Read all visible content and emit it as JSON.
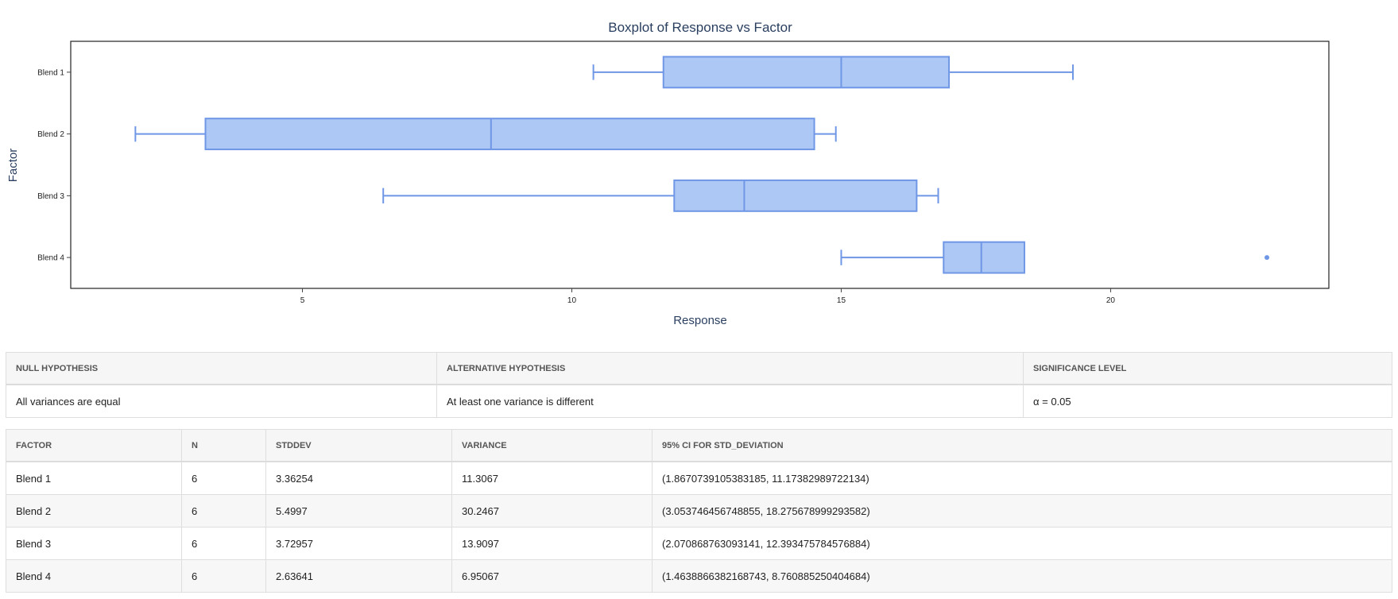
{
  "chart_data": {
    "type": "box",
    "orientation": "horizontal",
    "title": "Boxplot of Response vs Factor",
    "xlabel": "Response",
    "ylabel": "Factor",
    "xlim": [
      0.7,
      24.05
    ],
    "x_ticks": [
      5,
      10,
      15,
      20
    ],
    "categories": [
      "Blend 1",
      "Blend 2",
      "Blend 3",
      "Blend 4"
    ],
    "boxes": [
      {
        "category": "Blend 1",
        "min": 10.4,
        "q1": 11.7,
        "median": 15.0,
        "q3": 17.0,
        "max": 19.3,
        "outliers": []
      },
      {
        "category": "Blend 2",
        "min": 1.9,
        "q1": 3.2,
        "median": 8.5,
        "q3": 14.5,
        "max": 14.9,
        "outliers": []
      },
      {
        "category": "Blend 3",
        "min": 6.5,
        "q1": 11.9,
        "median": 13.2,
        "q3": 16.4,
        "max": 16.8,
        "outliers": []
      },
      {
        "category": "Blend 4",
        "min": 15.0,
        "q1": 16.9,
        "median": 17.6,
        "q3": 18.4,
        "max": 18.4,
        "outliers": [
          22.9
        ]
      }
    ],
    "colors": {
      "fill": "#aec8f5",
      "stroke": "#6f97e6",
      "title": "#2a3f5f"
    },
    "grid": false
  },
  "hypothesis": {
    "headers": [
      "Null Hypothesis",
      "Alternative Hypothesis",
      "Significance Level"
    ],
    "values": [
      "All variances are equal",
      "At least one variance is different",
      "α = 0.05"
    ]
  },
  "stats": {
    "headers": [
      "Factor",
      "N",
      "StdDev",
      "Variance",
      "95% CI for Std_Deviation"
    ],
    "rows": [
      [
        "Blend 1",
        "6",
        "3.36254",
        "11.3067",
        "(1.8670739105383185, 11.17382989722134)"
      ],
      [
        "Blend 2",
        "6",
        "5.4997",
        "30.2467",
        "(3.053746456748855, 18.275678999293582)"
      ],
      [
        "Blend 3",
        "6",
        "3.72957",
        "13.9097",
        "(2.070868763093141, 12.393475784576884)"
      ],
      [
        "Blend 4",
        "6",
        "2.63641",
        "6.95067",
        "(1.4638866382168743, 8.760885250404684)"
      ]
    ]
  }
}
